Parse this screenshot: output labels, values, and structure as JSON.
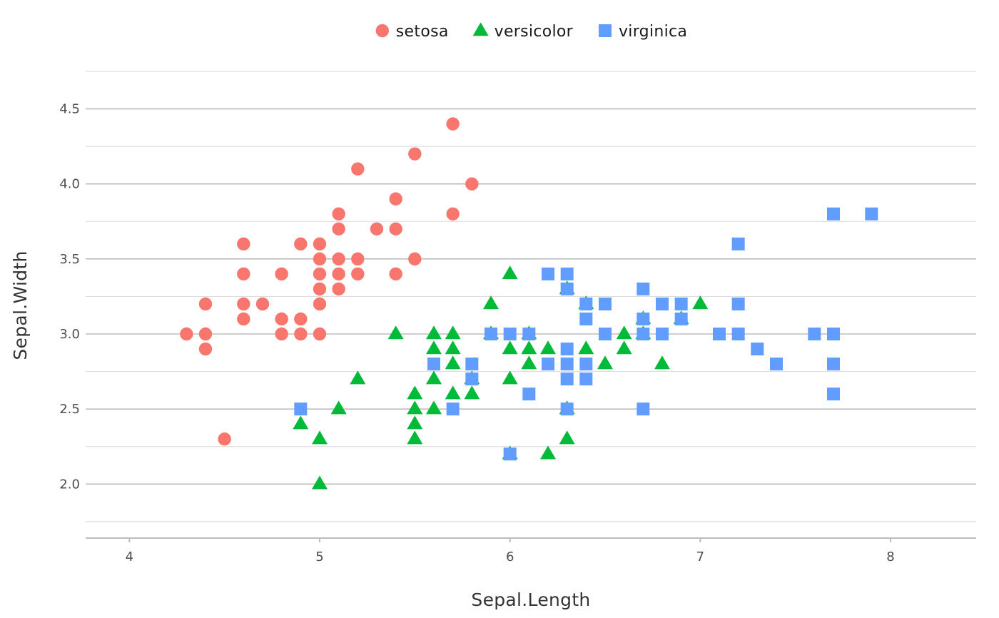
{
  "chart_data": {
    "type": "scatter",
    "xlabel": "Sepal.Length",
    "ylabel": "Sepal.Width",
    "xlim": [
      3.77,
      8.45
    ],
    "ylim": [
      1.64,
      4.75
    ],
    "xticks": [
      4,
      5,
      6,
      7,
      8
    ],
    "yticks": [
      2.0,
      2.5,
      3.0,
      3.5,
      4.0,
      4.5
    ],
    "xtick_labels": [
      "4",
      "5",
      "6",
      "7",
      "8"
    ],
    "ytick_labels": [
      "2.0",
      "2.5",
      "3.0",
      "3.5",
      "4.0",
      "4.5"
    ],
    "grid": true,
    "legend_position": "top",
    "series": [
      {
        "name": "setosa",
        "shape": "circle",
        "color": "#F8766D",
        "points": [
          [
            4.3,
            3.0
          ],
          [
            4.4,
            2.9
          ],
          [
            4.4,
            3.0
          ],
          [
            4.4,
            3.2
          ],
          [
            4.5,
            2.3
          ],
          [
            4.6,
            3.1
          ],
          [
            4.6,
            3.2
          ],
          [
            4.6,
            3.4
          ],
          [
            4.6,
            3.6
          ],
          [
            4.7,
            3.2
          ],
          [
            4.8,
            3.0
          ],
          [
            4.8,
            3.1
          ],
          [
            4.8,
            3.4
          ],
          [
            4.9,
            3.0
          ],
          [
            4.9,
            3.1
          ],
          [
            4.9,
            3.6
          ],
          [
            5.0,
            3.0
          ],
          [
            5.0,
            3.2
          ],
          [
            5.0,
            3.3
          ],
          [
            5.0,
            3.4
          ],
          [
            5.0,
            3.5
          ],
          [
            5.0,
            3.6
          ],
          [
            5.1,
            3.3
          ],
          [
            5.1,
            3.4
          ],
          [
            5.1,
            3.5
          ],
          [
            5.1,
            3.7
          ],
          [
            5.1,
            3.8
          ],
          [
            5.2,
            3.4
          ],
          [
            5.2,
            3.5
          ],
          [
            5.2,
            4.1
          ],
          [
            5.3,
            3.7
          ],
          [
            5.4,
            3.4
          ],
          [
            5.4,
            3.7
          ],
          [
            5.4,
            3.9
          ],
          [
            5.5,
            3.5
          ],
          [
            5.5,
            4.2
          ],
          [
            5.7,
            3.8
          ],
          [
            5.7,
            4.4
          ],
          [
            5.8,
            4.0
          ]
        ]
      },
      {
        "name": "versicolor",
        "shape": "triangle",
        "color": "#00BA38",
        "points": [
          [
            4.9,
            2.4
          ],
          [
            5.0,
            2.0
          ],
          [
            5.0,
            2.3
          ],
          [
            5.1,
            2.5
          ],
          [
            5.2,
            2.7
          ],
          [
            5.4,
            3.0
          ],
          [
            5.5,
            2.3
          ],
          [
            5.5,
            2.4
          ],
          [
            5.5,
            2.5
          ],
          [
            5.5,
            2.6
          ],
          [
            5.6,
            2.5
          ],
          [
            5.6,
            2.7
          ],
          [
            5.6,
            2.9
          ],
          [
            5.6,
            3.0
          ],
          [
            5.7,
            2.6
          ],
          [
            5.7,
            2.8
          ],
          [
            5.7,
            2.9
          ],
          [
            5.7,
            3.0
          ],
          [
            5.8,
            2.6
          ],
          [
            5.8,
            2.7
          ],
          [
            5.9,
            3.0
          ],
          [
            5.9,
            3.2
          ],
          [
            6.0,
            2.2
          ],
          [
            6.0,
            2.7
          ],
          [
            6.0,
            2.9
          ],
          [
            6.0,
            3.4
          ],
          [
            6.1,
            2.8
          ],
          [
            6.1,
            2.9
          ],
          [
            6.1,
            3.0
          ],
          [
            6.2,
            2.2
          ],
          [
            6.2,
            2.9
          ],
          [
            6.3,
            2.3
          ],
          [
            6.3,
            2.5
          ],
          [
            6.3,
            3.3
          ],
          [
            6.4,
            2.9
          ],
          [
            6.4,
            3.2
          ],
          [
            6.5,
            2.8
          ],
          [
            6.6,
            2.9
          ],
          [
            6.6,
            3.0
          ],
          [
            6.7,
            3.0
          ],
          [
            6.7,
            3.1
          ],
          [
            6.8,
            2.8
          ],
          [
            6.9,
            3.1
          ],
          [
            7.0,
            3.2
          ]
        ]
      },
      {
        "name": "virginica",
        "shape": "square",
        "color": "#619CFF",
        "points": [
          [
            4.9,
            2.5
          ],
          [
            5.6,
            2.8
          ],
          [
            5.7,
            2.5
          ],
          [
            5.8,
            2.7
          ],
          [
            5.8,
            2.8
          ],
          [
            5.9,
            3.0
          ],
          [
            6.0,
            2.2
          ],
          [
            6.0,
            3.0
          ],
          [
            6.1,
            2.6
          ],
          [
            6.1,
            3.0
          ],
          [
            6.2,
            2.8
          ],
          [
            6.2,
            3.4
          ],
          [
            6.3,
            2.5
          ],
          [
            6.3,
            2.7
          ],
          [
            6.3,
            2.8
          ],
          [
            6.3,
            2.9
          ],
          [
            6.3,
            3.3
          ],
          [
            6.3,
            3.4
          ],
          [
            6.4,
            2.7
          ],
          [
            6.4,
            2.8
          ],
          [
            6.4,
            3.1
          ],
          [
            6.4,
            3.2
          ],
          [
            6.5,
            3.0
          ],
          [
            6.5,
            3.2
          ],
          [
            6.7,
            2.5
          ],
          [
            6.7,
            3.0
          ],
          [
            6.7,
            3.1
          ],
          [
            6.7,
            3.3
          ],
          [
            6.8,
            3.0
          ],
          [
            6.8,
            3.2
          ],
          [
            6.9,
            3.1
          ],
          [
            6.9,
            3.2
          ],
          [
            7.1,
            3.0
          ],
          [
            7.2,
            3.0
          ],
          [
            7.2,
            3.2
          ],
          [
            7.2,
            3.6
          ],
          [
            7.3,
            2.9
          ],
          [
            7.4,
            2.8
          ],
          [
            7.6,
            3.0
          ],
          [
            7.7,
            2.6
          ],
          [
            7.7,
            2.8
          ],
          [
            7.7,
            3.0
          ],
          [
            7.7,
            3.8
          ],
          [
            7.9,
            3.8
          ]
        ]
      }
    ]
  }
}
